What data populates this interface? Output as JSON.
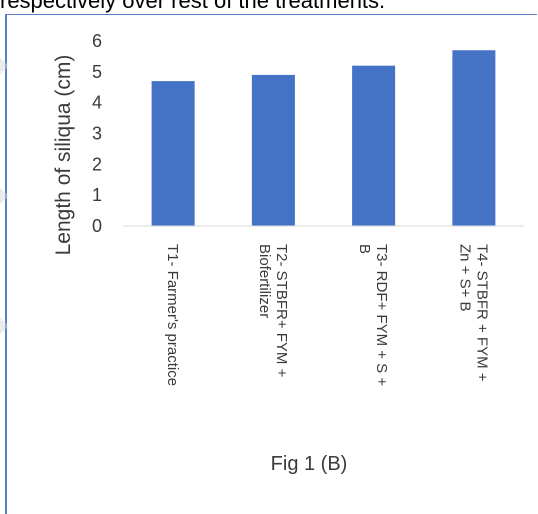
{
  "page_text": "respectively over rest of the treatments.",
  "figure": {
    "caption": "Fig 1 (B)"
  },
  "chart_data": {
    "type": "bar",
    "categories": [
      [
        "T1- Farmer's practice"
      ],
      [
        "T2- STBFR+ FYM +",
        "Biofertilizer"
      ],
      [
        "T3- RDF+ FYM + S +",
        "B"
      ],
      [
        "T4- STBFR + FYM +",
        "Zn + S+ B"
      ]
    ],
    "values": [
      4.7,
      4.9,
      5.2,
      5.7
    ],
    "ylabel": "Length of siliqua (cm)",
    "ylim": [
      0,
      6
    ],
    "yticks": [
      0,
      1,
      2,
      3,
      4,
      5,
      6
    ],
    "grid": false,
    "colors": {
      "bar": "#4472c4",
      "axis": "#d9d9d9",
      "frame": "#5b7fc4"
    }
  }
}
